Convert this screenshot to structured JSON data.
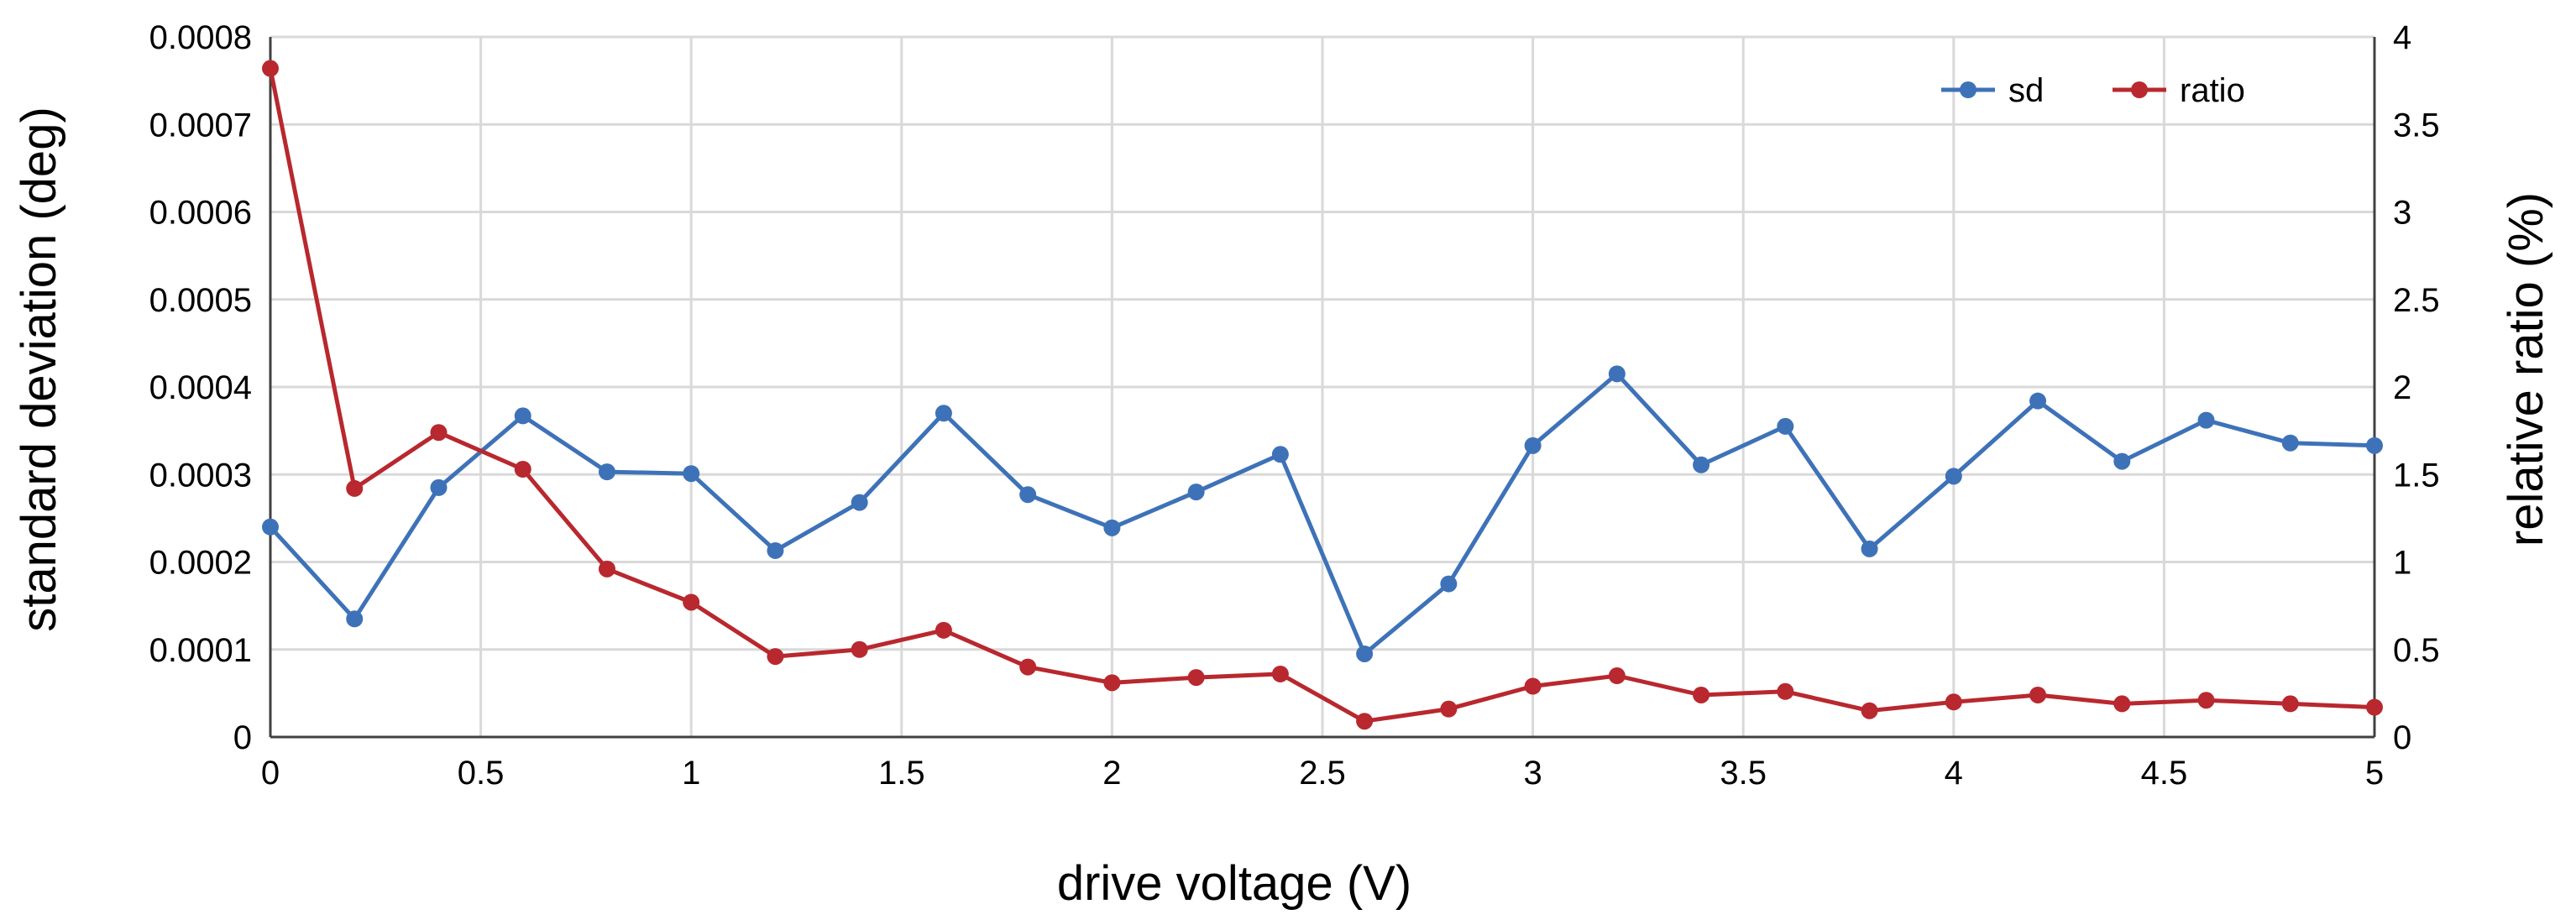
{
  "chart_data": {
    "type": "line",
    "xlabel": "drive voltage (V)",
    "ylabel_left": "standard deviation (deg)",
    "ylabel_right": "relative ratio (%)",
    "xlim": [
      0,
      5
    ],
    "ylim_left": [
      0,
      0.0008
    ],
    "ylim_right": [
      0,
      4
    ],
    "x_ticks": [
      "0",
      "0.5",
      "1",
      "1.5",
      "2",
      "2.5",
      "3",
      "3.5",
      "4",
      "4.5",
      "5"
    ],
    "y_left_ticks": [
      "0",
      "0.0001",
      "0.0002",
      "0.0003",
      "0.0004",
      "0.0005",
      "0.0006",
      "0.0007",
      "0.0008"
    ],
    "y_right_ticks": [
      "0",
      "0.5",
      "1",
      "1.5",
      "2",
      "2.5",
      "3",
      "3.5",
      "4"
    ],
    "grid": true,
    "legend_position": "top-right",
    "x": [
      0,
      0.2,
      0.4,
      0.6,
      0.8,
      1.0,
      1.2,
      1.4,
      1.6,
      1.8,
      2.0,
      2.2,
      2.4,
      2.6,
      2.8,
      3.0,
      3.2,
      3.4,
      3.6,
      3.8,
      4.0,
      4.2,
      4.4,
      4.6,
      4.8,
      5.0
    ],
    "series": [
      {
        "name": "sd",
        "axis": "left",
        "color": "#3e72b8",
        "values": [
          0.00024,
          0.000135,
          0.000285,
          0.000367,
          0.000303,
          0.000301,
          0.000213,
          0.000268,
          0.00037,
          0.000277,
          0.000239,
          0.00028,
          0.000323,
          9.5e-05,
          0.000175,
          0.000333,
          0.000415,
          0.000311,
          0.000355,
          0.000215,
          0.000298,
          0.000384,
          0.000315,
          0.000362,
          0.000336,
          0.000333
        ]
      },
      {
        "name": "ratio",
        "axis": "right",
        "color": "#b8282e",
        "values": [
          3.82,
          1.42,
          1.74,
          1.53,
          0.96,
          0.77,
          0.46,
          0.5,
          0.61,
          0.4,
          0.31,
          0.34,
          0.36,
          0.09,
          0.16,
          0.29,
          0.35,
          0.24,
          0.26,
          0.15,
          0.2,
          0.24,
          0.19,
          0.21,
          0.19,
          0.17
        ]
      }
    ]
  }
}
